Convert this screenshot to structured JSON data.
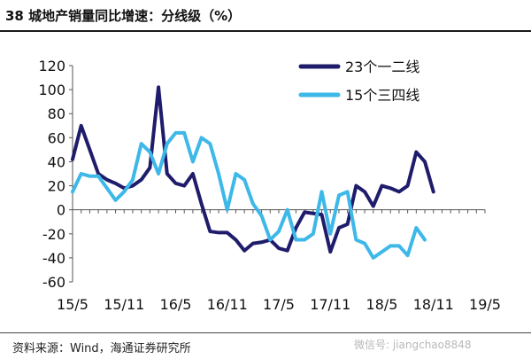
{
  "title": "38 城地产销量同比增速：分线级（%）",
  "source": "资料来源：Wind，海通证券研究所",
  "watermark": "微信号: jiangchao8848",
  "chart_data": {
    "type": "line",
    "title": "38 城地产销量同比增速：分线级（%）",
    "xlabel": "",
    "ylabel": "",
    "ylim": [
      -60,
      120
    ],
    "yticks": [
      120,
      100,
      80,
      60,
      40,
      20,
      0,
      -20,
      -40,
      -60
    ],
    "xlim": [
      0,
      48
    ],
    "xticks": [
      {
        "label": "15/5",
        "x": 0
      },
      {
        "label": "15/11",
        "x": 6
      },
      {
        "label": "16/5",
        "x": 12
      },
      {
        "label": "16/11",
        "x": 18
      },
      {
        "label": "17/5",
        "x": 24
      },
      {
        "label": "17/11",
        "x": 30
      },
      {
        "label": "18/5",
        "x": 36
      },
      {
        "label": "18/11",
        "x": 42
      },
      {
        "label": "19/5",
        "x": 48
      }
    ],
    "grid": false,
    "legend_position": "top-right",
    "series": [
      {
        "name": "23个一二线",
        "color": "#1f1c6b",
        "values": [
          42,
          70,
          50,
          30,
          25,
          22,
          18,
          20,
          25,
          35,
          102,
          30,
          22,
          20,
          30,
          5,
          -18,
          -19,
          -19,
          -25,
          -34,
          -28,
          -27,
          -25,
          -32,
          -34,
          -15,
          -2,
          -3,
          -4,
          -35,
          -15,
          -12,
          20,
          15,
          3,
          20,
          18,
          15,
          20,
          48,
          40,
          15
        ]
      },
      {
        "name": "15个三四线",
        "color": "#3db8e8",
        "values": [
          15,
          30,
          28,
          28,
          18,
          8,
          15,
          25,
          55,
          48,
          30,
          55,
          64,
          64,
          40,
          60,
          55,
          30,
          0,
          30,
          25,
          5,
          -5,
          -25,
          -18,
          0,
          -25,
          -25,
          -20,
          15,
          -20,
          12,
          15,
          -25,
          -28,
          -40,
          -35,
          -30,
          -30,
          -38,
          -15,
          -25
        ]
      }
    ]
  }
}
